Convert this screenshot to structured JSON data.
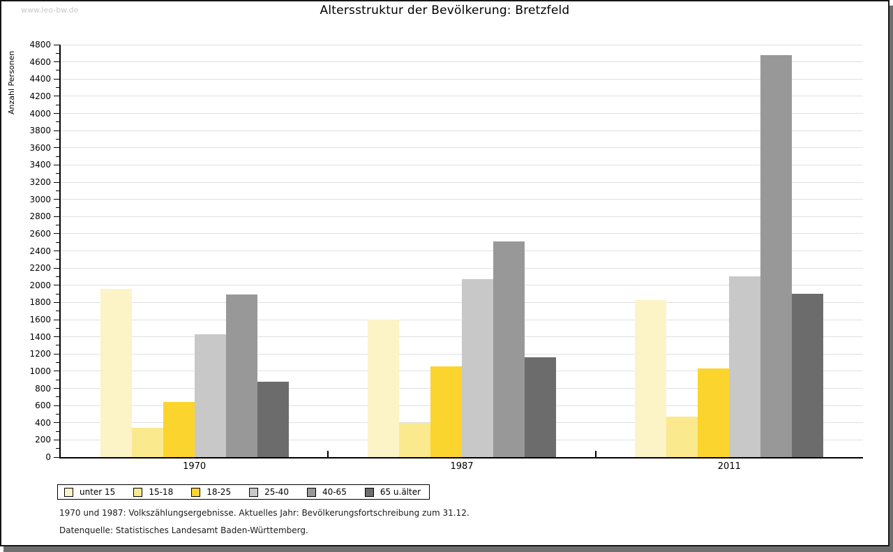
{
  "watermark": "www.leo-bw.de",
  "title": "Altersstruktur der Bevölkerung: Bretzfeld",
  "chart_data": {
    "type": "bar",
    "title": "Altersstruktur der Bevölkerung: Bretzfeld",
    "xlabel": "",
    "ylabel": "Anzahl Personen",
    "ylim": [
      0,
      4800
    ],
    "ytick_step": 200,
    "yminor_step": 100,
    "grid": true,
    "legend_position": "bottom-left",
    "categories": [
      "1970",
      "1987",
      "2011"
    ],
    "series": [
      {
        "name": "unter 15",
        "color": "#FCF4C7",
        "values": [
          1960,
          1600,
          1830
        ]
      },
      {
        "name": "15-18",
        "color": "#FBE98E",
        "values": [
          340,
          400,
          470
        ]
      },
      {
        "name": "18-25",
        "color": "#FCD42E",
        "values": [
          645,
          1060,
          1030
        ]
      },
      {
        "name": "25-40",
        "color": "#C8C8C8",
        "values": [
          1430,
          2070,
          2100
        ]
      },
      {
        "name": "40-65",
        "color": "#989898",
        "values": [
          1890,
          2510,
          4680
        ]
      },
      {
        "name": "65 u.älter",
        "color": "#6C6C6C",
        "values": [
          880,
          1160,
          1900
        ]
      }
    ]
  },
  "footnotes": {
    "line1": "1970 und 1987: Volkszählungsergebnisse. Aktuelles Jahr: Bevölkerungsfortschreibung zum 31.12.",
    "line2": "Datenquelle: Statistisches Landesamt Baden-Württemberg."
  }
}
